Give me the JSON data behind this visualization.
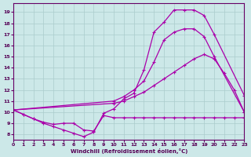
{
  "xlabel": "Windchill (Refroidissement éolien,°C)",
  "xlim": [
    0,
    23
  ],
  "ylim": [
    7.5,
    19.8
  ],
  "yticks": [
    8,
    9,
    10,
    11,
    12,
    13,
    14,
    15,
    16,
    17,
    18,
    19
  ],
  "xticks": [
    0,
    1,
    2,
    3,
    4,
    5,
    6,
    7,
    8,
    9,
    10,
    11,
    12,
    13,
    14,
    15,
    16,
    17,
    18,
    19,
    20,
    21,
    22,
    23
  ],
  "bg_color": "#cce8e8",
  "grid_color": "#aacccc",
  "line_color": "#aa00aa",
  "line1_x": [
    0,
    1,
    2,
    3,
    4,
    5,
    6,
    7,
    8,
    9,
    10,
    11,
    12,
    13,
    14,
    15,
    16,
    17,
    18,
    19,
    20,
    21,
    22,
    23
  ],
  "line1_y": [
    10.2,
    9.8,
    9.4,
    9.1,
    8.9,
    9.0,
    9.0,
    8.4,
    8.3,
    9.7,
    9.5,
    9.5,
    9.5,
    9.5,
    9.5,
    9.5,
    9.5,
    9.5,
    9.5,
    9.5,
    9.5,
    9.5,
    9.5,
    9.5
  ],
  "line2_x": [
    0,
    1,
    2,
    3,
    4,
    5,
    6,
    7,
    8,
    9,
    10,
    11,
    12,
    13,
    14,
    15,
    16,
    17,
    18,
    19,
    20,
    23
  ],
  "line2_y": [
    10.2,
    9.8,
    9.4,
    9.0,
    8.7,
    8.4,
    8.1,
    7.8,
    8.2,
    9.9,
    10.3,
    11.2,
    11.7,
    13.8,
    17.2,
    18.1,
    19.2,
    19.2,
    19.2,
    18.7,
    17.0,
    11.5
  ],
  "line3_x": [
    0,
    10,
    11,
    12,
    13,
    14,
    15,
    16,
    17,
    18,
    19,
    20,
    23
  ],
  "line3_y": [
    10.2,
    11.0,
    11.4,
    12.0,
    12.8,
    14.5,
    16.5,
    17.2,
    17.5,
    17.5,
    16.8,
    15.0,
    10.0
  ],
  "line4_x": [
    0,
    10,
    11,
    12,
    13,
    14,
    15,
    16,
    17,
    18,
    19,
    20,
    21,
    22,
    23
  ],
  "line4_y": [
    10.2,
    10.8,
    11.0,
    11.4,
    11.8,
    12.4,
    13.0,
    13.6,
    14.2,
    14.8,
    15.2,
    14.8,
    13.5,
    12.0,
    10.0
  ]
}
